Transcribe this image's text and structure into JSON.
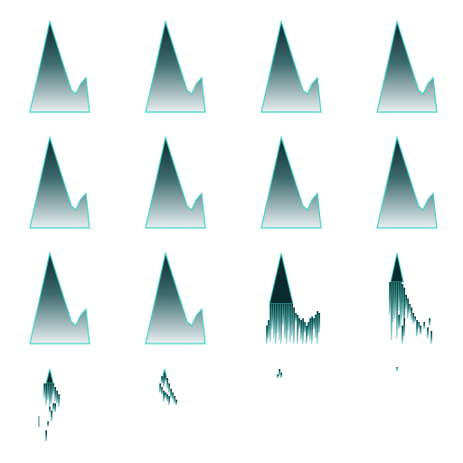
{
  "sprite_sheet": {
    "name": "mountain-crumble-animation",
    "columns": 4,
    "rows": 4,
    "colors": {
      "peak_dark": "#0a2a2e",
      "base_light": "#e8f0f0",
      "outline": "#3fd0c6"
    },
    "frames": [
      {
        "index": 0,
        "state": "intact",
        "dissolve": 0.0
      },
      {
        "index": 1,
        "state": "intact",
        "dissolve": 0.0
      },
      {
        "index": 2,
        "state": "intact",
        "dissolve": 0.0
      },
      {
        "index": 3,
        "state": "intact",
        "dissolve": 0.0
      },
      {
        "index": 4,
        "state": "intact",
        "dissolve": 0.0
      },
      {
        "index": 5,
        "state": "intact",
        "dissolve": 0.0
      },
      {
        "index": 6,
        "state": "intact",
        "dissolve": 0.0
      },
      {
        "index": 7,
        "state": "intact",
        "dissolve": 0.0
      },
      {
        "index": 8,
        "state": "intact",
        "dissolve": 0.0
      },
      {
        "index": 9,
        "state": "intact",
        "dissolve": 0.0
      },
      {
        "index": 10,
        "state": "crumbling",
        "dissolve": 0.35
      },
      {
        "index": 11,
        "state": "crumbling",
        "dissolve": 0.6
      },
      {
        "index": 12,
        "state": "fragment",
        "dissolve": 0.8
      },
      {
        "index": 13,
        "state": "fragment",
        "dissolve": 0.88
      },
      {
        "index": 14,
        "state": "speck",
        "dissolve": 0.97
      },
      {
        "index": 15,
        "state": "speck",
        "dissolve": 0.995
      }
    ]
  }
}
